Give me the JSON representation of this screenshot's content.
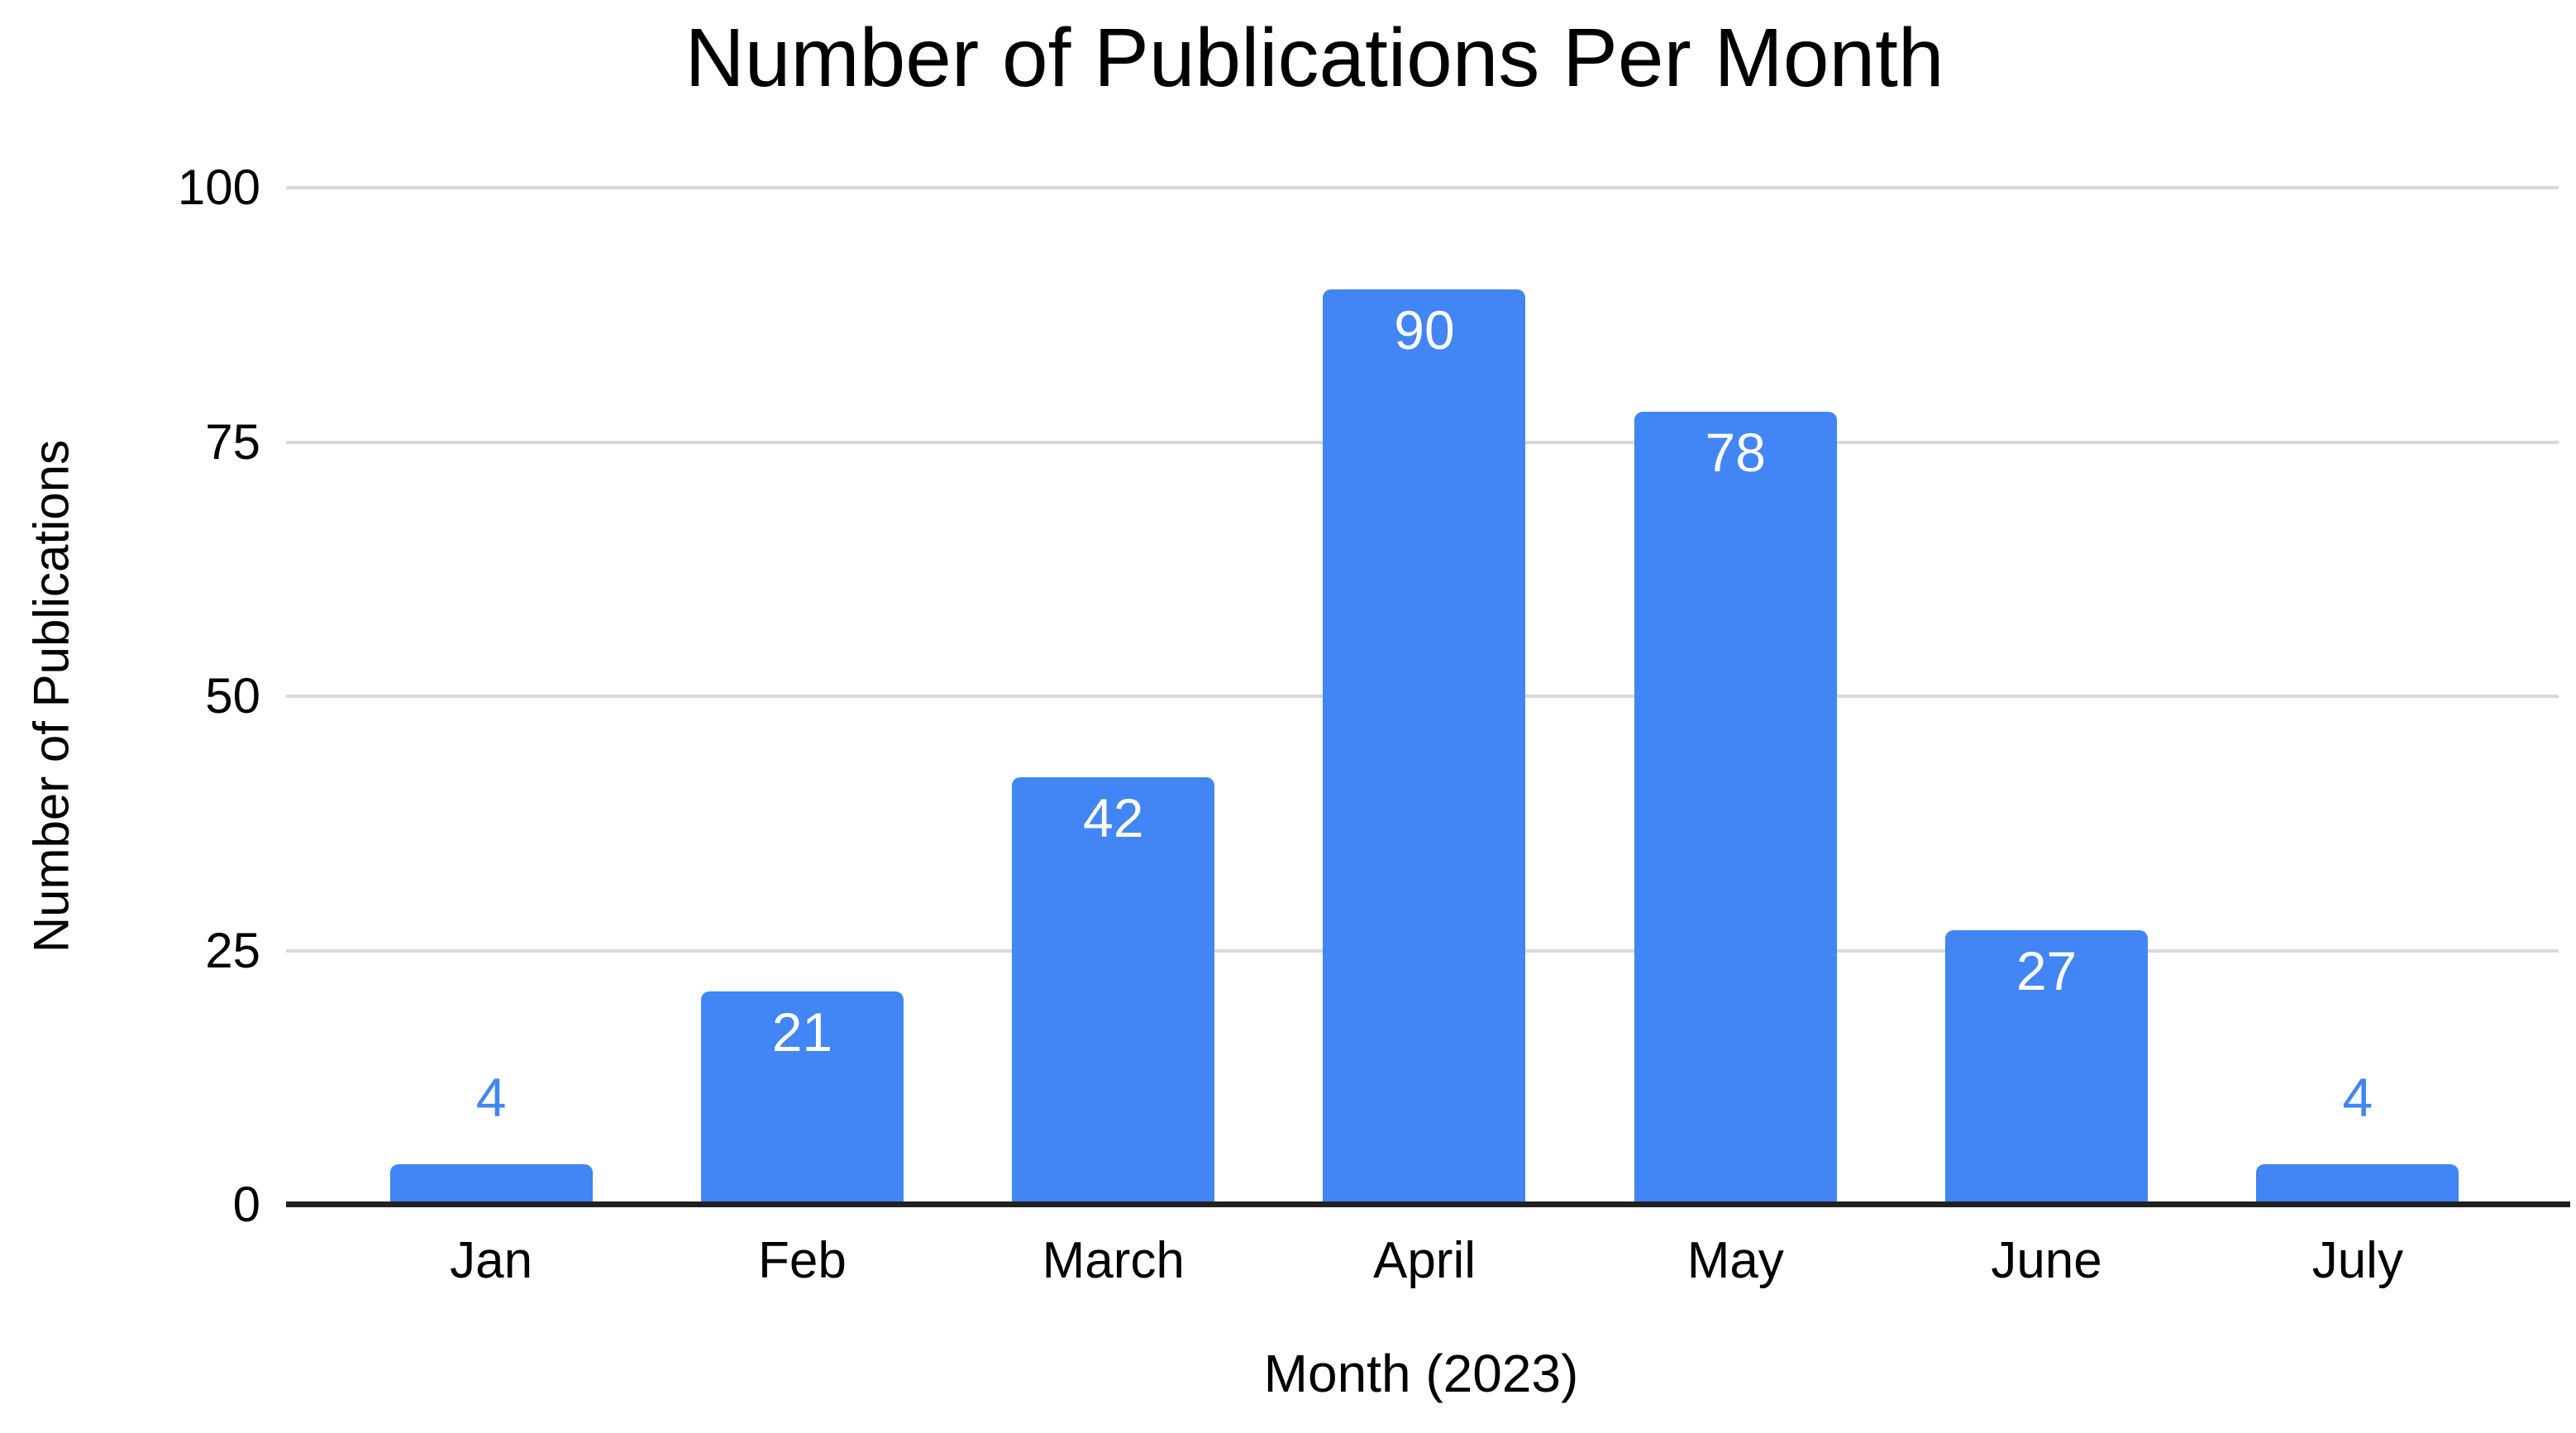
{
  "chart_data": {
    "type": "bar",
    "title": "Number of Publications Per Month",
    "xlabel": "Month (2023)",
    "ylabel": "Number of Publications",
    "categories": [
      "Jan",
      "Feb",
      "March",
      "April",
      "May",
      "June",
      "July"
    ],
    "values": [
      4,
      21,
      42,
      90,
      78,
      27,
      4
    ],
    "ylim": [
      0,
      100
    ],
    "yticks": [
      0,
      25,
      50,
      75,
      100
    ],
    "grid": "horizontal-only",
    "legend_position": "none",
    "bar_color": "#4285F4",
    "data_labels": {
      "shown": true,
      "inside_color": "#ffffff",
      "outside_color": "#4285F4",
      "inside_threshold": 10
    },
    "colors": {
      "background": "#ffffff",
      "gridline": "#d9d9d9",
      "axis_line": "#212121",
      "text": "#000000"
    }
  }
}
